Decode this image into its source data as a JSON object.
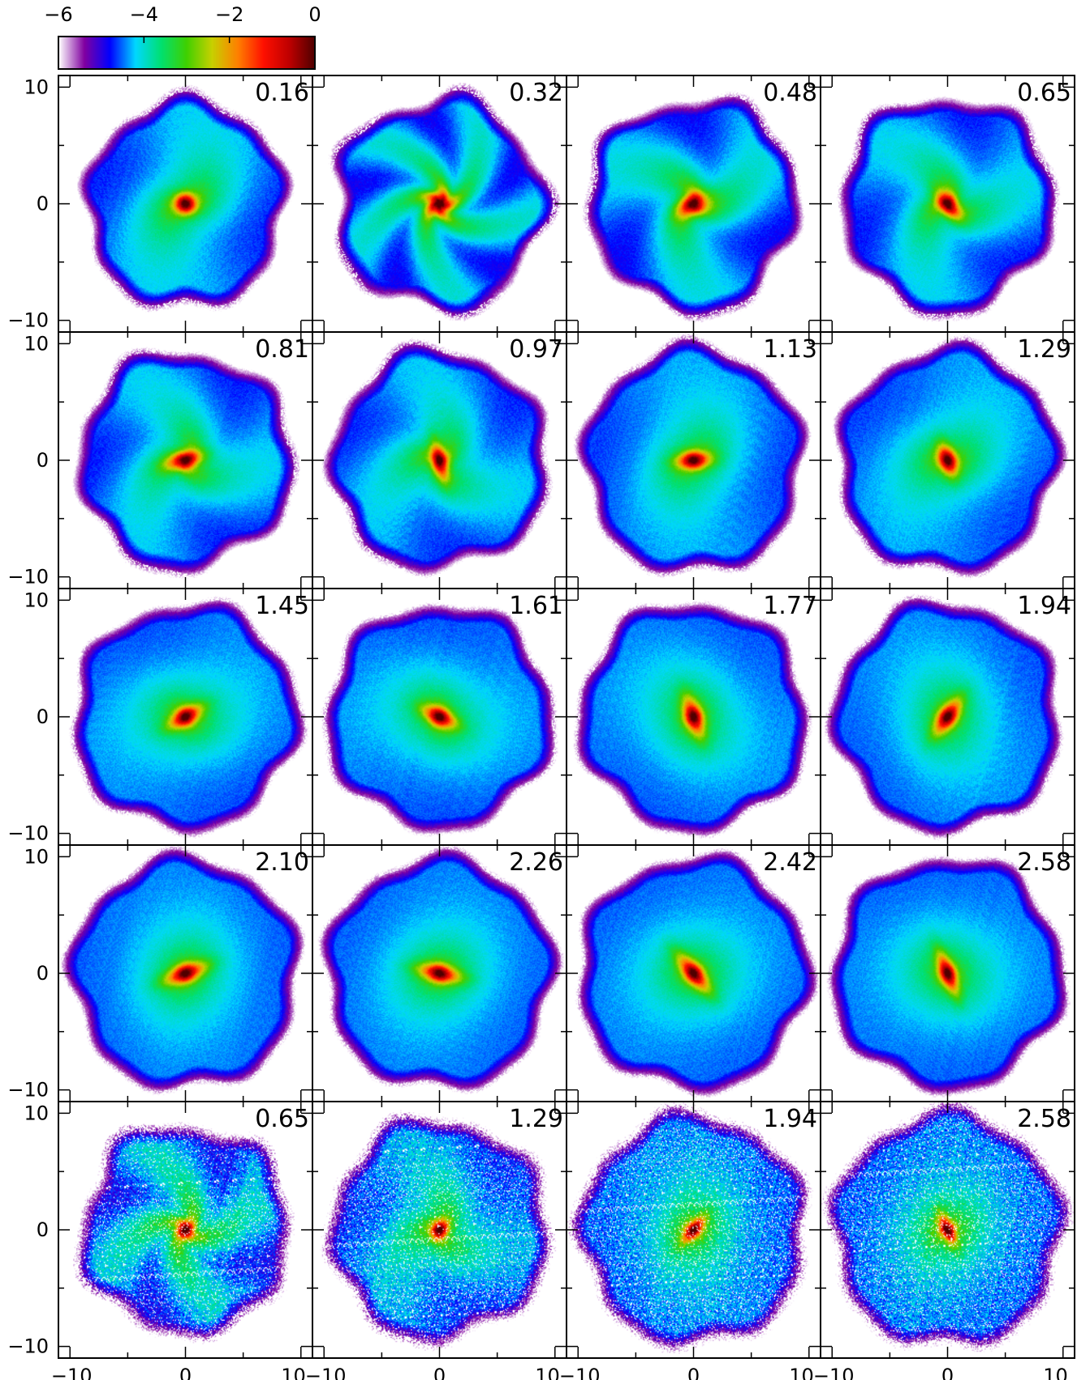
{
  "chart_data": {
    "type": "heatmap",
    "title": "",
    "xlabel": "",
    "ylabel": "",
    "grid": false,
    "xlim": [
      -11,
      11
    ],
    "ylim": [
      -11,
      11
    ],
    "x_ticks": [
      "−10",
      "0",
      "10"
    ],
    "y_ticks": [
      "10",
      "0",
      "−10"
    ],
    "colorbar": {
      "range": [
        -6,
        0
      ],
      "ticks": [
        "−6",
        "−4",
        "−2",
        "0"
      ],
      "colors": [
        "#ffffff",
        "#8000a0",
        "#0000ff",
        "#00d8ff",
        "#00e070",
        "#40d000",
        "#c8d000",
        "#ff8000",
        "#ff1000",
        "#c00000",
        "#500000"
      ]
    },
    "panel_columns": 4,
    "panel_rows": 5,
    "panels": [
      {
        "label": "0.16",
        "core_len": 0.9,
        "core_width": 0.9,
        "angle": 0,
        "arms": 2,
        "arm_strength": 0.5,
        "radius": 9.0
      },
      {
        "label": "0.32",
        "core_len": 1.3,
        "core_width": 1.1,
        "angle": 20,
        "arms": 5,
        "arm_strength": 0.8,
        "radius": 9.3
      },
      {
        "label": "0.48",
        "core_len": 1.6,
        "core_width": 0.9,
        "angle": 30,
        "arms": 3,
        "arm_strength": 0.7,
        "radius": 9.3
      },
      {
        "label": "0.65",
        "core_len": 1.6,
        "core_width": 0.7,
        "angle": -50,
        "arms": 3,
        "arm_strength": 0.55,
        "radius": 9.4
      },
      {
        "label": "0.81",
        "core_len": 1.8,
        "core_width": 0.7,
        "angle": 15,
        "arms": 3,
        "arm_strength": 0.5,
        "radius": 9.5
      },
      {
        "label": "0.97",
        "core_len": 1.9,
        "core_width": 0.6,
        "angle": -75,
        "arms": 3,
        "arm_strength": 0.45,
        "radius": 9.6
      },
      {
        "label": "1.13",
        "core_len": 1.6,
        "core_width": 0.7,
        "angle": 5,
        "arms": 2,
        "arm_strength": 0.3,
        "radius": 9.8
      },
      {
        "label": "1.29",
        "core_len": 1.6,
        "core_width": 0.7,
        "angle": -70,
        "arms": 2,
        "arm_strength": 0.3,
        "radius": 9.8
      },
      {
        "label": "1.45",
        "core_len": 1.8,
        "core_width": 0.7,
        "angle": 30,
        "arms": 2,
        "arm_strength": 0.2,
        "radius": 9.9
      },
      {
        "label": "1.61",
        "core_len": 1.7,
        "core_width": 0.7,
        "angle": -25,
        "arms": 2,
        "arm_strength": 0.2,
        "radius": 9.9
      },
      {
        "label": "1.77",
        "core_len": 2.0,
        "core_width": 0.7,
        "angle": -70,
        "arms": 2,
        "arm_strength": 0.15,
        "radius": 10.0
      },
      {
        "label": "1.94",
        "core_len": 2.0,
        "core_width": 0.7,
        "angle": 55,
        "arms": 2,
        "arm_strength": 0.15,
        "radius": 10.0
      },
      {
        "label": "2.10",
        "core_len": 2.1,
        "core_width": 0.7,
        "angle": 20,
        "arms": 2,
        "arm_strength": 0.1,
        "radius": 10.1
      },
      {
        "label": "2.26",
        "core_len": 2.1,
        "core_width": 0.7,
        "angle": -12,
        "arms": 2,
        "arm_strength": 0.1,
        "radius": 10.1
      },
      {
        "label": "2.42",
        "core_len": 2.3,
        "core_width": 0.7,
        "angle": -50,
        "arms": 2,
        "arm_strength": 0.1,
        "radius": 10.2
      },
      {
        "label": "2.58",
        "core_len": 2.2,
        "core_width": 0.6,
        "angle": -68,
        "arms": 2,
        "arm_strength": 0.1,
        "radius": 10.2
      },
      {
        "label": "0.65",
        "core_len": 0.8,
        "core_width": 0.7,
        "angle": 60,
        "arms": 4,
        "arm_strength": 0.75,
        "radius": 9.2,
        "speckle": true
      },
      {
        "label": "1.29",
        "core_len": 0.9,
        "core_width": 0.6,
        "angle": 60,
        "arms": 3,
        "arm_strength": 0.4,
        "radius": 9.6,
        "speckle": true
      },
      {
        "label": "1.94",
        "core_len": 1.5,
        "core_width": 0.5,
        "angle": 50,
        "arms": 2,
        "arm_strength": 0.15,
        "radius": 10.0,
        "speckle": true
      },
      {
        "label": "2.58",
        "core_len": 1.6,
        "core_width": 0.5,
        "angle": -65,
        "arms": 2,
        "arm_strength": 0.1,
        "radius": 10.2,
        "speckle": true
      }
    ]
  }
}
